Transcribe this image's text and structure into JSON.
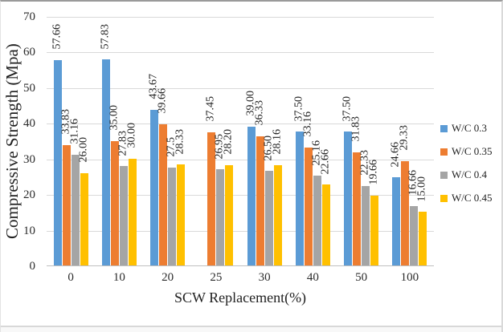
{
  "chart_data": {
    "type": "bar",
    "title": "",
    "xlabel": "SCW Replacement(%)",
    "ylabel": "Compressive Strength (Mpa)",
    "categories": [
      "0",
      "10",
      "20",
      "25",
      "30",
      "40",
      "50",
      "100"
    ],
    "y_ticks": [
      0,
      10,
      20,
      30,
      40,
      50,
      60,
      70
    ],
    "ylim": [
      0,
      70
    ],
    "grid": true,
    "legend_position": "right",
    "series": [
      {
        "name": "W/C 0.3",
        "color": "#5B9BD5",
        "values": [
          57.66,
          57.83,
          43.67,
          null,
          39.0,
          37.5,
          37.5,
          24.66
        ],
        "labels": [
          "57.66",
          "57.83",
          "43.67",
          null,
          "39.00",
          "37.50",
          "37.50",
          "24.66"
        ]
      },
      {
        "name": "W/C 0.35",
        "color": "#ED7D31",
        "values": [
          33.83,
          35.0,
          39.66,
          37.45,
          36.33,
          33.16,
          31.83,
          29.33
        ],
        "labels": [
          "33.83",
          "35.00",
          "39.66",
          "37.45",
          "36.33",
          "33.16",
          "31.83",
          "29.33"
        ]
      },
      {
        "name": "W/C 0.4",
        "color": "#A5A5A5",
        "values": [
          31.16,
          27.83,
          27.5,
          26.95,
          26.5,
          25.16,
          22.33,
          16.66
        ],
        "labels": [
          "31.16",
          "27.83",
          "27.5",
          "26.95",
          "26.50",
          "25.16",
          "22.33",
          "16.66"
        ]
      },
      {
        "name": "W/C 0.45",
        "color": "#FFC000",
        "values": [
          26.0,
          30.0,
          28.33,
          28.2,
          28.16,
          22.66,
          19.66,
          15.0
        ],
        "labels": [
          "26.00",
          "30.00",
          "28.33",
          "28.20",
          "28.16",
          "22.66",
          "19.66",
          "15.00"
        ]
      }
    ]
  }
}
